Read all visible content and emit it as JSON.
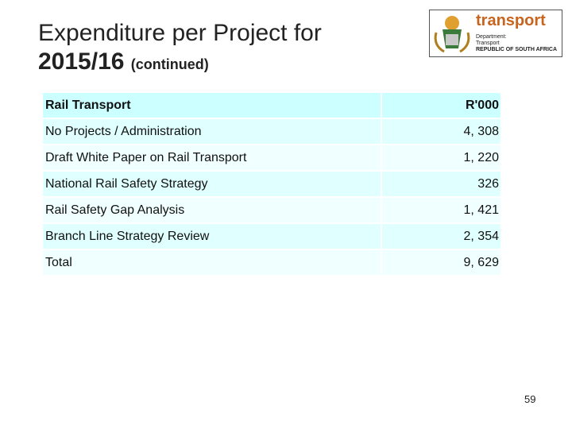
{
  "header": {
    "title": "Expenditure per Project for",
    "title_line2": "2015/16",
    "subtitle": "(continued)"
  },
  "logo": {
    "name": "transport",
    "line1": "Department:",
    "line2": "Transport",
    "line3": "REPUBLIC OF SOUTH AFRICA"
  },
  "table": {
    "header": [
      "Rail Transport",
      "R'000"
    ],
    "rows": [
      [
        "No Projects / Administration",
        "4, 308"
      ],
      [
        "Draft White Paper on Rail Transport",
        "1, 220"
      ],
      [
        "National Rail Safety Strategy",
        "326"
      ],
      [
        "Rail Safety Gap Analysis",
        "1, 421"
      ],
      [
        "Branch Line Strategy Review",
        "2, 354"
      ],
      [
        "Total",
        "9, 629"
      ]
    ]
  },
  "footer": {
    "page_number": "59"
  }
}
